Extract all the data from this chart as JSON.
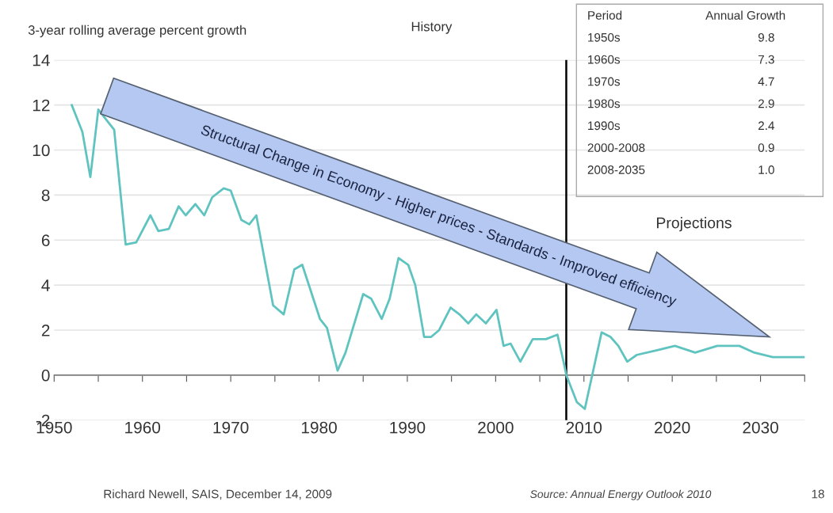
{
  "chart_data": {
    "type": "line",
    "ylabel": "3-year rolling average percent growth",
    "x": [
      1952.0,
      1953.2,
      1954.1,
      1955.0,
      1956.0,
      1956.8,
      1958.1,
      1959.3,
      1960.9,
      1961.8,
      1963.0,
      1964.1,
      1964.9,
      1966.0,
      1967.0,
      1967.9,
      1969.2,
      1970.0,
      1971.2,
      1972.1,
      1972.9,
      1974.8,
      1976.0,
      1977.2,
      1978.1,
      1980.1,
      1980.9,
      1982.1,
      1983.0,
      1985.0,
      1985.9,
      1987.1,
      1988.0,
      1989.0,
      1990.1,
      1990.9,
      1991.9,
      1992.7,
      1993.6,
      1994.9,
      1995.9,
      1996.9,
      1997.8,
      1998.9,
      2000.1,
      2000.9,
      2001.7,
      2002.8,
      2004.2,
      2005.7,
      2007.0,
      2007.8,
      2008.0,
      2009.2,
      2010.1,
      2012.0,
      2013.0,
      2013.9,
      2014.9,
      2016.0,
      2018.2,
      2020.3,
      2022.6,
      2025.1,
      2027.6,
      2029.3,
      2031.4,
      2035.0
    ],
    "series": [
      {
        "color": "#5fc4c0",
        "values": [
          12.0,
          10.8,
          8.8,
          11.8,
          11.3,
          10.9,
          5.8,
          5.9,
          7.1,
          6.4,
          6.5,
          7.5,
          7.1,
          7.6,
          7.1,
          7.9,
          8.3,
          8.2,
          6.9,
          6.7,
          7.1,
          3.1,
          2.7,
          4.7,
          4.9,
          2.5,
          2.1,
          0.2,
          1.0,
          3.6,
          3.4,
          2.5,
          3.4,
          5.2,
          4.9,
          4.0,
          1.7,
          1.7,
          2.0,
          3.0,
          2.7,
          2.3,
          2.7,
          2.3,
          2.9,
          1.3,
          1.4,
          0.6,
          1.6,
          1.6,
          1.8,
          0.4,
          0.0,
          -1.2,
          -1.5,
          1.9,
          1.7,
          1.3,
          0.6,
          0.9,
          1.1,
          1.3,
          1.0,
          1.3,
          1.3,
          1.0,
          0.8,
          0.8
        ]
      }
    ],
    "xlim": [
      1950,
      2035
    ],
    "xticks": [
      1950,
      {
        "value": 1955,
        "label": null
      },
      1960,
      {
        "value": 1965,
        "label": null
      },
      1970,
      {
        "value": 1975,
        "label": null
      },
      1980,
      {
        "value": 1985,
        "label": null
      },
      1990,
      {
        "value": 1995,
        "label": null
      },
      2000,
      {
        "value": 2005,
        "label": null
      },
      2010,
      {
        "value": 2015,
        "label": null
      },
      2020,
      {
        "value": 2025,
        "label": null
      },
      2030,
      {
        "value": 2035,
        "label": null
      }
    ],
    "ylim": [
      -2,
      14
    ],
    "yticks": [
      -2,
      0,
      2,
      4,
      6,
      8,
      10,
      12,
      14
    ],
    "grid": "y",
    "ref_lines": [
      {
        "axis": "x",
        "value": 2008,
        "color": "#000000"
      }
    ],
    "annotations": [
      "Period",
      "Annual Growth",
      "1950s",
      "9.8",
      "1960s",
      "7.3",
      "1970s",
      "4.7",
      "1980s",
      "2.9",
      "1990s",
      "2.4",
      "2000-2008",
      "0.9",
      "2008-2035",
      "1.0",
      "History",
      "Projections",
      "Structural Change in Economy - Higher prices - Standards - Improved efficiency",
      "Richard Newell, SAIS, December 14, 2009",
      "Source: Annual Energy Outlook 2010",
      "18"
    ]
  }
}
